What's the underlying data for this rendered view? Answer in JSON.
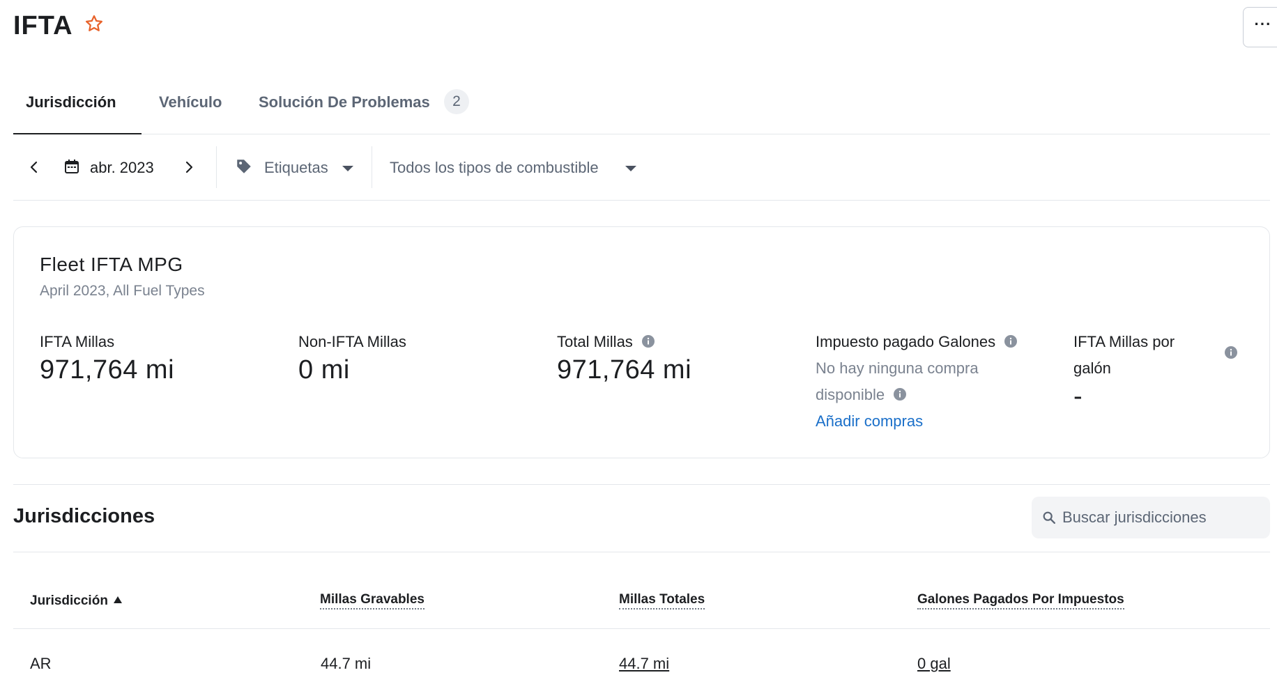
{
  "header": {
    "title": "IFTA",
    "more_label": "···"
  },
  "tabs": [
    {
      "label": "Jurisdicción",
      "active": true
    },
    {
      "label": "Vehículo",
      "active": false
    },
    {
      "label": "Solución De Problemas",
      "active": false,
      "badge": "2"
    }
  ],
  "filters": {
    "date": "abr. 2023",
    "tags_label": "Etiquetas",
    "fuel_label": "Todos los tipos de combustible"
  },
  "summary": {
    "title": "Fleet IFTA MPG",
    "subtitle": "April 2023, All Fuel Types",
    "ifta_miles_label": "IFTA Millas",
    "ifta_miles_value": "971,764 mi",
    "non_ifta_label": "Non-IFTA Millas",
    "non_ifta_value": "0 mi",
    "total_label": "Total Millas",
    "total_value": "971,764 mi",
    "tax_paid_label": "Impuesto pagado Galones",
    "no_purchases_line1": "No hay ninguna compra",
    "no_purchases_line2": "disponible",
    "add_purchases": "Añadir compras",
    "mpg_label_line1": "IFTA Millas por",
    "mpg_label_line2": "galón",
    "mpg_value": "-"
  },
  "jurisdictions": {
    "title": "Jurisdicciones",
    "search_placeholder": "Buscar jurisdicciones",
    "columns": [
      "Jurisdicción",
      "Millas Gravables",
      "Millas Totales",
      "Galones Pagados Por Impuestos"
    ],
    "rows": [
      {
        "jurisdiction": "AR",
        "taxable": "44.7 mi",
        "total": "44.7 mi",
        "gallons": "0 gal"
      }
    ]
  },
  "colors": {
    "accent_star": "#e8632b",
    "link": "#1a6fc9",
    "info_icon": "#8a929e"
  },
  "icons": [
    "star-icon",
    "more-icon",
    "chevron-left-icon",
    "calendar-icon",
    "chevron-right-icon",
    "tag-icon",
    "caret-down-icon",
    "info-icon",
    "search-icon",
    "sort-asc-icon"
  ]
}
